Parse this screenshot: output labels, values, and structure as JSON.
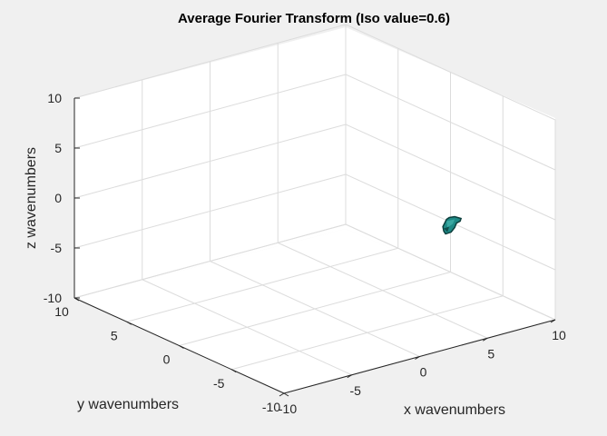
{
  "chart_data": {
    "type": "isosurface-3d",
    "title": "Average Fourier Transform (Iso value=0.6)",
    "xlabel": "x wavenumbers",
    "ylabel": "y wavenumbers",
    "zlabel": "z wavenumbers",
    "xlim": [
      -10,
      10
    ],
    "ylim": [
      -10,
      10
    ],
    "zlim": [
      -10,
      10
    ],
    "xticks": [
      "-10",
      "-5",
      "0",
      "5",
      "10"
    ],
    "yticks": [
      "-10",
      "-5",
      "0",
      "5",
      "10"
    ],
    "zticks": [
      "-10",
      "-5",
      "0",
      "5",
      "10"
    ],
    "grid": true,
    "iso_value": 0.6,
    "surface_color": "#1f8a86",
    "surface_edge_color": "#0c3e3c",
    "blob_center": [
      4.5,
      -7,
      0
    ],
    "note_visible": ""
  },
  "colors": {
    "background": "#f0f0f0",
    "axes_face": "#ffffff",
    "grid": "#dcdcdc",
    "axis_line": "#262626"
  }
}
